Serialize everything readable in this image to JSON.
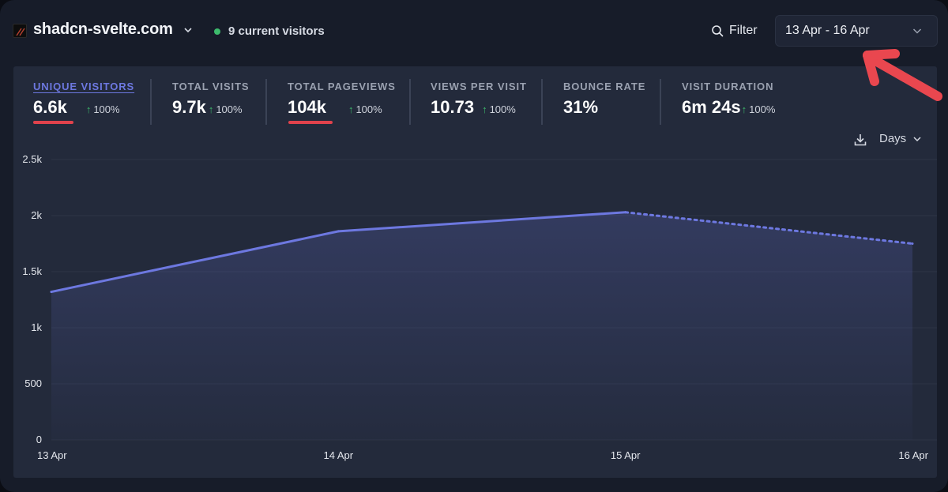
{
  "header": {
    "site_name": "shadcn-svelte.com",
    "current_visitors": "9 current visitors",
    "filter_label": "Filter",
    "date_range": "13 Apr - 16 Apr"
  },
  "metrics": [
    {
      "label": "UNIQUE VISITORS",
      "value": "6.6k",
      "change": "100%"
    },
    {
      "label": "TOTAL VISITS",
      "value": "9.7k",
      "change": "100%"
    },
    {
      "label": "TOTAL PAGEVIEWS",
      "value": "104k",
      "change": "100%"
    },
    {
      "label": "VIEWS PER VISIT",
      "value": "10.73",
      "change": "100%"
    },
    {
      "label": "BOUNCE RATE",
      "value": "31%"
    },
    {
      "label": "VISIT DURATION",
      "value": "6m 24s",
      "change": "100%"
    }
  ],
  "chart_controls": {
    "interval": "Days"
  },
  "colors": {
    "accent": "#6d78e0",
    "positive": "#3dbb6c",
    "annotation": "#e0424c"
  },
  "chart_data": {
    "type": "line",
    "categories": [
      "13 Apr",
      "14 Apr",
      "15 Apr",
      "16 Apr"
    ],
    "series": [
      {
        "name": "Unique visitors",
        "values": [
          1320,
          1860,
          2030,
          1750
        ]
      }
    ],
    "dashed_from_index": 2,
    "ylim": [
      0,
      2500
    ],
    "yticks": [
      0,
      500,
      1000,
      1500,
      2000,
      2500
    ],
    "ytick_labels": [
      "0",
      "500",
      "1k",
      "1.5k",
      "2k",
      "2.5k"
    ],
    "grid": true
  }
}
